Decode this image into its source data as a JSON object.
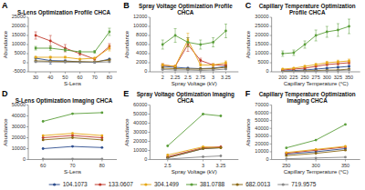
{
  "chart_data": [
    {
      "type": "line",
      "title": "S-Lens Optimization Profile CHCA",
      "x_label": "S-Lens",
      "y_label": "Abundance",
      "annotations": [
        "A"
      ],
      "marker": "circle",
      "grid": false,
      "legend": "bottom",
      "x": [
        30,
        40,
        50,
        60,
        70,
        80
      ],
      "xlim": [
        25,
        85
      ],
      "xticks": [
        30,
        40,
        50,
        60,
        70,
        80
      ],
      "ylim": [
        -5000,
        25000
      ],
      "yticks": [
        -5000,
        0,
        5000,
        10000,
        15000,
        20000,
        25000
      ],
      "series": [
        {
          "name": "104.1073",
          "color": "#2e4e8e",
          "values": [
            2500,
            1200,
            1000,
            500,
            200,
            2000
          ],
          "errors": [
            500,
            2000,
            500,
            200,
            100,
            300
          ]
        },
        {
          "name": "133.0607",
          "color": "#c0392b",
          "values": [
            15000,
            12000,
            8000,
            5000,
            2000,
            9000
          ],
          "errors": [
            2000,
            3000,
            2000,
            1000,
            500,
            1500
          ]
        },
        {
          "name": "304.1499",
          "color": "#e6a817",
          "values": [
            3000,
            3000,
            3000,
            2000,
            2500,
            8000
          ],
          "errors": [
            500,
            500,
            500,
            300,
            400,
            1500
          ]
        },
        {
          "name": "381.0788",
          "color": "#5a9e3a",
          "values": [
            8000,
            8000,
            7000,
            6000,
            6000,
            17000
          ],
          "errors": [
            1000,
            1200,
            800,
            700,
            700,
            2000
          ]
        },
        {
          "name": "682.0013",
          "color": "#8b6914",
          "values": [
            1000,
            800,
            700,
            600,
            500,
            1500
          ],
          "errors": [
            200,
            150,
            100,
            100,
            80,
            200
          ]
        },
        {
          "name": "719.9575",
          "color": "#888888",
          "values": [
            500,
            400,
            300,
            200,
            200,
            500
          ],
          "errors": [
            100,
            80,
            60,
            40,
            40,
            80
          ]
        }
      ]
    },
    {
      "type": "line",
      "title": "Spray Voltage Optimization Profile CHCA",
      "x_label": "Spray Voltage (kV)",
      "y_label": "Abundance",
      "annotations": [
        "B"
      ],
      "marker": "circle",
      "grid": false,
      "x": [
        2,
        2.25,
        2.5,
        2.75,
        3,
        3.25
      ],
      "xlim": [
        1.75,
        3.5
      ],
      "xticks": [
        2,
        2.25,
        2.5,
        2.75,
        3,
        3.25
      ],
      "ylim": [
        0,
        12000
      ],
      "yticks": [
        0,
        2000,
        4000,
        6000,
        8000,
        10000,
        12000
      ],
      "series": [
        {
          "name": "104.1073",
          "color": "#2e4e8e",
          "values": [
            1200,
            1000,
            800,
            700,
            800,
            1200
          ],
          "errors": [
            200,
            150,
            150,
            100,
            100,
            150
          ]
        },
        {
          "name": "133.0607",
          "color": "#c0392b",
          "values": [
            1500,
            1200,
            6000,
            2500,
            1500,
            1500
          ],
          "errors": [
            300,
            200,
            1500,
            500,
            300,
            300
          ]
        },
        {
          "name": "304.1499",
          "color": "#e6a817",
          "values": [
            1500,
            1200,
            7000,
            1500,
            1500,
            2000
          ],
          "errors": [
            300,
            200,
            1500,
            300,
            300,
            400
          ]
        },
        {
          "name": "381.0788",
          "color": "#5a9e3a",
          "values": [
            6000,
            8000,
            6500,
            6000,
            6500,
            9000
          ],
          "errors": [
            1000,
            1500,
            1000,
            1000,
            1000,
            1500
          ]
        },
        {
          "name": "682.0013",
          "color": "#8b6914",
          "values": [
            800,
            700,
            600,
            600,
            700,
            1000
          ],
          "errors": [
            150,
            100,
            100,
            80,
            100,
            150
          ]
        },
        {
          "name": "719.9575",
          "color": "#888888",
          "values": [
            500,
            400,
            400,
            300,
            400,
            600
          ],
          "errors": [
            80,
            70,
            60,
            50,
            60,
            80
          ]
        }
      ]
    },
    {
      "type": "line",
      "title": "Capillary Temperature Optimization\nProfile CHCA",
      "x_label": "Capillary Temperature (°C)",
      "y_label": "Abundance",
      "annotations": [
        "C"
      ],
      "marker": "circle",
      "grid": false,
      "x": [
        200,
        225,
        250,
        275,
        300,
        325,
        350
      ],
      "xlim": [
        175,
        375
      ],
      "xticks": [
        200,
        225,
        250,
        275,
        300,
        325,
        350
      ],
      "ylim": [
        0,
        30000
      ],
      "yticks": [
        0,
        5000,
        10000,
        15000,
        20000,
        25000,
        30000
      ],
      "series": [
        {
          "name": "104.1073",
          "color": "#2e4e8e",
          "values": [
            500,
            700,
            1000,
            1500,
            2000,
            2500,
            3000
          ],
          "errors": [
            100,
            100,
            150,
            200,
            300,
            300,
            400
          ]
        },
        {
          "name": "133.0607",
          "color": "#c0392b",
          "values": [
            1000,
            1500,
            2000,
            3000,
            4000,
            4500,
            5000
          ],
          "errors": [
            200,
            200,
            300,
            400,
            600,
            700,
            800
          ]
        },
        {
          "name": "304.1499",
          "color": "#e6a817",
          "values": [
            1500,
            2000,
            3000,
            4000,
            5000,
            5500,
            6000
          ],
          "errors": [
            300,
            300,
            500,
            600,
            800,
            900,
            1000
          ]
        },
        {
          "name": "381.0788",
          "color": "#5a9e3a",
          "values": [
            10000,
            10500,
            15000,
            20000,
            22000,
            23000,
            25000
          ],
          "errors": [
            1500,
            1500,
            2000,
            3000,
            3000,
            3500,
            4000
          ]
        },
        {
          "name": "682.0013",
          "color": "#8b6914",
          "values": [
            200,
            300,
            500,
            700,
            900,
            1000,
            1500
          ],
          "errors": [
            40,
            50,
            80,
            100,
            130,
            150,
            200
          ]
        },
        {
          "name": "719.9575",
          "color": "#888888",
          "values": [
            100,
            200,
            300,
            400,
            600,
            700,
            1000
          ],
          "errors": [
            20,
            30,
            50,
            60,
            90,
            100,
            150
          ]
        }
      ]
    },
    {
      "type": "line",
      "title": "S-Lens Optimization Imaging CHCA",
      "x_label": "S-Lens",
      "y_label": "Abundance",
      "annotations": [
        "D"
      ],
      "marker": "circle",
      "grid": false,
      "x": [
        60,
        70,
        80
      ],
      "xlim": [
        55,
        85
      ],
      "xticks": [
        60,
        70,
        80
      ],
      "ylim": [
        0,
        50000
      ],
      "yticks": [
        0,
        10000,
        20000,
        30000,
        40000,
        50000
      ],
      "series": [
        {
          "name": "104.1073",
          "color": "#2e4e8e",
          "values": [
            10000,
            12000,
            11000
          ]
        },
        {
          "name": "133.0607",
          "color": "#c0392b",
          "values": [
            20000,
            22000,
            20000
          ]
        },
        {
          "name": "304.1499",
          "color": "#e6a817",
          "values": [
            22000,
            24000,
            22000
          ]
        },
        {
          "name": "381.0788",
          "color": "#5a9e3a",
          "values": [
            35000,
            42000,
            43000
          ]
        },
        {
          "name": "682.0013",
          "color": "#8b6914",
          "values": [
            18000,
            20000,
            18000
          ]
        },
        {
          "name": "719.9575",
          "color": "#888888",
          "values": [
            500,
            600,
            550
          ]
        }
      ]
    },
    {
      "type": "line",
      "title": "Spray Voltage Optimization Imaging\nCHCA",
      "x_label": "Spray Voltage (kV)",
      "y_label": "Abundance",
      "annotations": [
        "E"
      ],
      "marker": "circle",
      "grid": false,
      "x": [
        2.5,
        3,
        3.25
      ],
      "xlim": [
        2.25,
        3.5
      ],
      "xticks": [
        2.5,
        3,
        3.25
      ],
      "ylim": [
        0,
        60000
      ],
      "yticks": [
        0,
        10000,
        20000,
        30000,
        40000,
        50000,
        60000
      ],
      "series": [
        {
          "name": "104.1073",
          "color": "#2e4e8e",
          "values": [
            2000,
            12000,
            13000
          ]
        },
        {
          "name": "133.0607",
          "color": "#c0392b",
          "values": [
            3000,
            13000,
            14000
          ]
        },
        {
          "name": "304.1499",
          "color": "#e6a817",
          "values": [
            5000,
            14000,
            13000
          ]
        },
        {
          "name": "381.0788",
          "color": "#5a9e3a",
          "values": [
            15000,
            50000,
            48000
          ]
        },
        {
          "name": "682.0013",
          "color": "#8b6914",
          "values": [
            2000,
            12000,
            13000
          ]
        },
        {
          "name": "719.9575",
          "color": "#888888",
          "values": [
            500,
            3000,
            4000
          ]
        }
      ]
    },
    {
      "type": "line",
      "title": "Capillary Temperature Optimization\nImaging CHCA",
      "x_label": "Capillary Temperature (°C)",
      "y_label": "Abundance",
      "annotations": [
        "F"
      ],
      "marker": "circle",
      "grid": false,
      "x": [
        250,
        300,
        350
      ],
      "xlim": [
        225,
        375
      ],
      "xticks": [
        250,
        300,
        350
      ],
      "ylim": [
        0,
        70000
      ],
      "yticks": [
        0,
        10000,
        20000,
        30000,
        40000,
        50000,
        60000,
        70000
      ],
      "series": [
        {
          "name": "104.1073",
          "color": "#2e4e8e",
          "values": [
            7000,
            10000,
            14000
          ]
        },
        {
          "name": "133.0607",
          "color": "#c0392b",
          "values": [
            8000,
            12000,
            16000
          ]
        },
        {
          "name": "304.1499",
          "color": "#e6a817",
          "values": [
            9000,
            13000,
            17000
          ]
        },
        {
          "name": "381.0788",
          "color": "#5a9e3a",
          "values": [
            15000,
            25000,
            45000
          ]
        },
        {
          "name": "682.0013",
          "color": "#8b6914",
          "values": [
            5000,
            8000,
            12000
          ]
        },
        {
          "name": "719.9575",
          "color": "#888888",
          "values": [
            1000,
            2000,
            3000
          ]
        }
      ]
    }
  ]
}
